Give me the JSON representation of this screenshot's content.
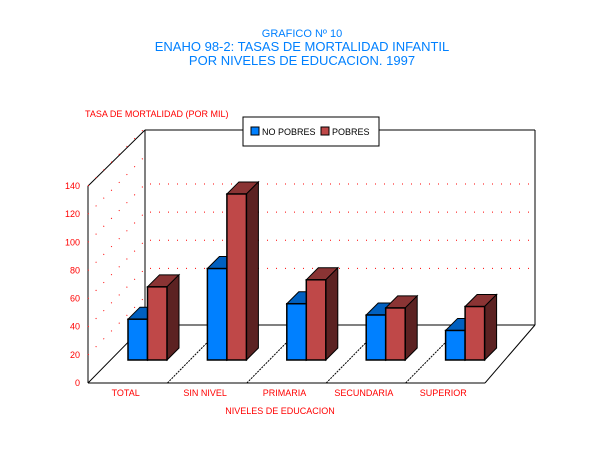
{
  "chart_data": {
    "type": "bar",
    "supertitle": "GRAFICO Nº 10",
    "title": "ENAHO 98-2: TASAS DE MORTALIDAD INFANTIL",
    "subtitle": "POR NIVELES DE EDUCACION. 1997",
    "ylabel": "TASA DE MORTALIDAD (POR MIL)",
    "xlabel": "NIVELES DE EDUCACION",
    "categories": [
      "TOTAL",
      "SIN NIVEL",
      "PRIMARIA",
      "SECUNDARIA",
      "SUPERIOR"
    ],
    "series": [
      {
        "name": "NO POBRES",
        "values": [
          29,
          65,
          40,
          32,
          21
        ],
        "color": "#0080ff"
      },
      {
        "name": "POBRES",
        "values": [
          52,
          118,
          57,
          37,
          38
        ],
        "color": "#bf4848"
      }
    ],
    "yticks": [
      "0",
      "20",
      "40",
      "60",
      "80",
      "100",
      "120",
      "140"
    ],
    "ylim": [
      0,
      140
    ],
    "legend_position": "top-center",
    "grid": true
  }
}
